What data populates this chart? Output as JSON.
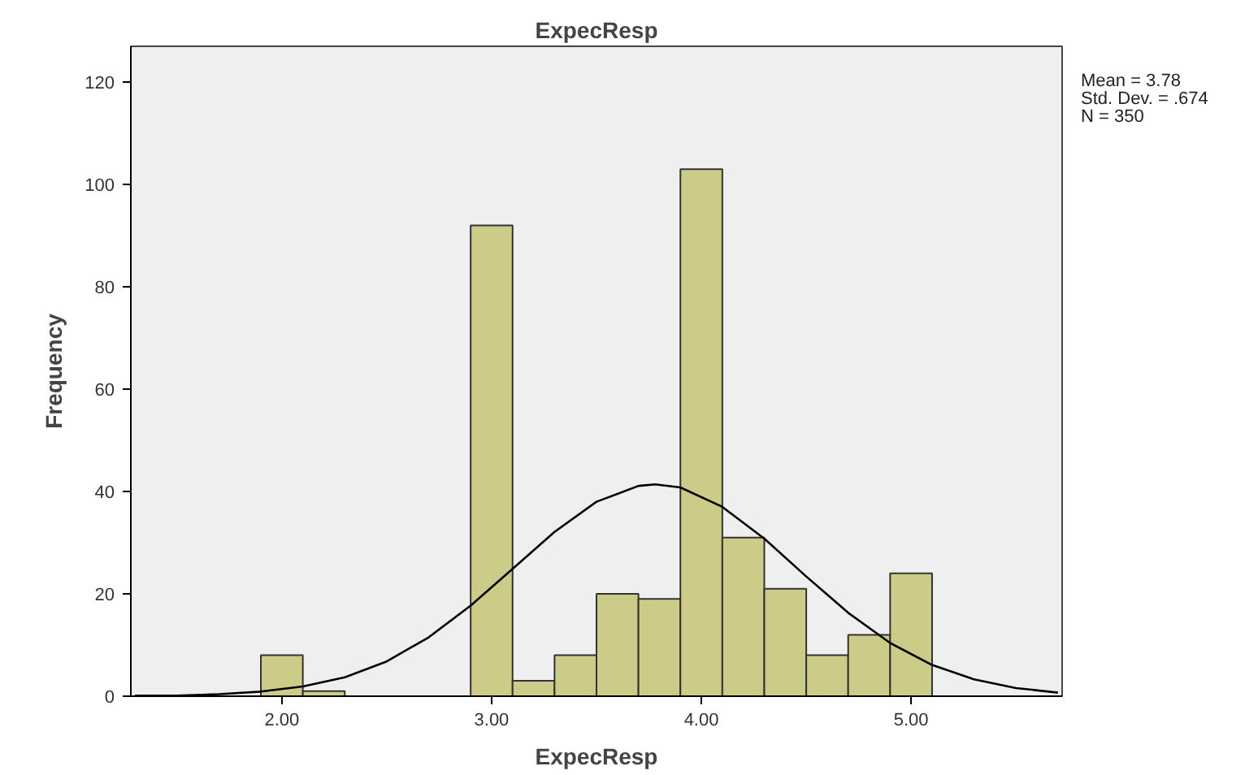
{
  "chart_data": {
    "type": "histogram",
    "title": "ExpecResp",
    "xlabel": "ExpecResp",
    "ylabel": "Frequency",
    "bins": [
      1.9,
      2.1,
      2.3,
      2.5,
      2.7,
      2.9,
      3.1,
      3.3,
      3.5,
      3.7,
      3.9,
      4.1,
      4.3,
      4.5,
      4.7,
      4.9,
      5.1
    ],
    "values": [
      8,
      1,
      0,
      0,
      0,
      92,
      3,
      8,
      20,
      19,
      103,
      31,
      21,
      8,
      12,
      24
    ],
    "color": "#cccc88",
    "series": [
      {
        "type": "line",
        "color": "#000000",
        "x": [
          1.3,
          1.5,
          1.7,
          1.9,
          2.1,
          2.3,
          2.5,
          2.7,
          2.9,
          3.1,
          3.3,
          3.5,
          3.7,
          3.78,
          3.9,
          4.1,
          4.3,
          4.5,
          4.7,
          4.9,
          5.1,
          5.3,
          5.5,
          5.7
        ],
        "values": [
          0.1,
          0.1,
          0.4,
          0.9,
          1.9,
          3.7,
          6.8,
          11.5,
          17.7,
          24.9,
          32.1,
          38.0,
          41.1,
          41.4,
          40.8,
          37.0,
          30.8,
          23.4,
          16.3,
          10.4,
          6.1,
          3.3,
          1.6,
          0.7
        ]
      }
    ],
    "xlim": [
      1.28,
      5.72
    ],
    "ylim": [
      0,
      127
    ],
    "xticks": [
      {
        "value": 2,
        "label": "2.00"
      },
      {
        "value": 3,
        "label": "3.00"
      },
      {
        "value": 4,
        "label": "4.00"
      },
      {
        "value": 5,
        "label": "5.00"
      }
    ],
    "yticks": [
      0,
      20,
      40,
      60,
      80,
      100,
      120
    ],
    "annotations": [
      "Mean = 3.78",
      "Std. Dev. = .674",
      "N = 350"
    ]
  }
}
